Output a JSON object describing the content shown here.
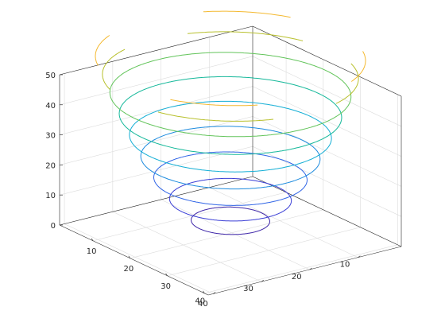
{
  "chart_data": {
    "type": "contour3d",
    "title": "",
    "xlabel": "",
    "ylabel": "",
    "zlabel": "",
    "xlim": [
      1,
      41
    ],
    "ylim": [
      1,
      41
    ],
    "zlim": [
      0,
      50
    ],
    "x_ticks": [
      "10",
      "20",
      "30",
      "40"
    ],
    "y_ticks": [
      "10",
      "20",
      "30",
      "40"
    ],
    "z_ticks": [
      "0",
      "10",
      "20",
      "30",
      "40",
      "50"
    ],
    "grid": true,
    "box": true,
    "colormap": [
      "#3e26a8",
      "#2f64e6",
      "#13aed5",
      "#15b89a",
      "#62c45a",
      "#b8c02c",
      "#f4b930"
    ],
    "surface_center": [
      21,
      21
    ],
    "surface_scale": 0.12,
    "levels": [
      {
        "z": 5,
        "color": "#3e26a8"
      },
      {
        "z": 12,
        "color": "#3a3ed6"
      },
      {
        "z": 19,
        "color": "#2f64e6"
      },
      {
        "z": 26,
        "color": "#1d8bde"
      },
      {
        "z": 33,
        "color": "#13aed5"
      },
      {
        "z": 40,
        "color": "#15b89a"
      },
      {
        "z": 47,
        "color": "#62c45a"
      },
      {
        "z": 53,
        "color": "#b8c02c"
      },
      {
        "z": 59,
        "color": "#f4b930"
      }
    ]
  }
}
